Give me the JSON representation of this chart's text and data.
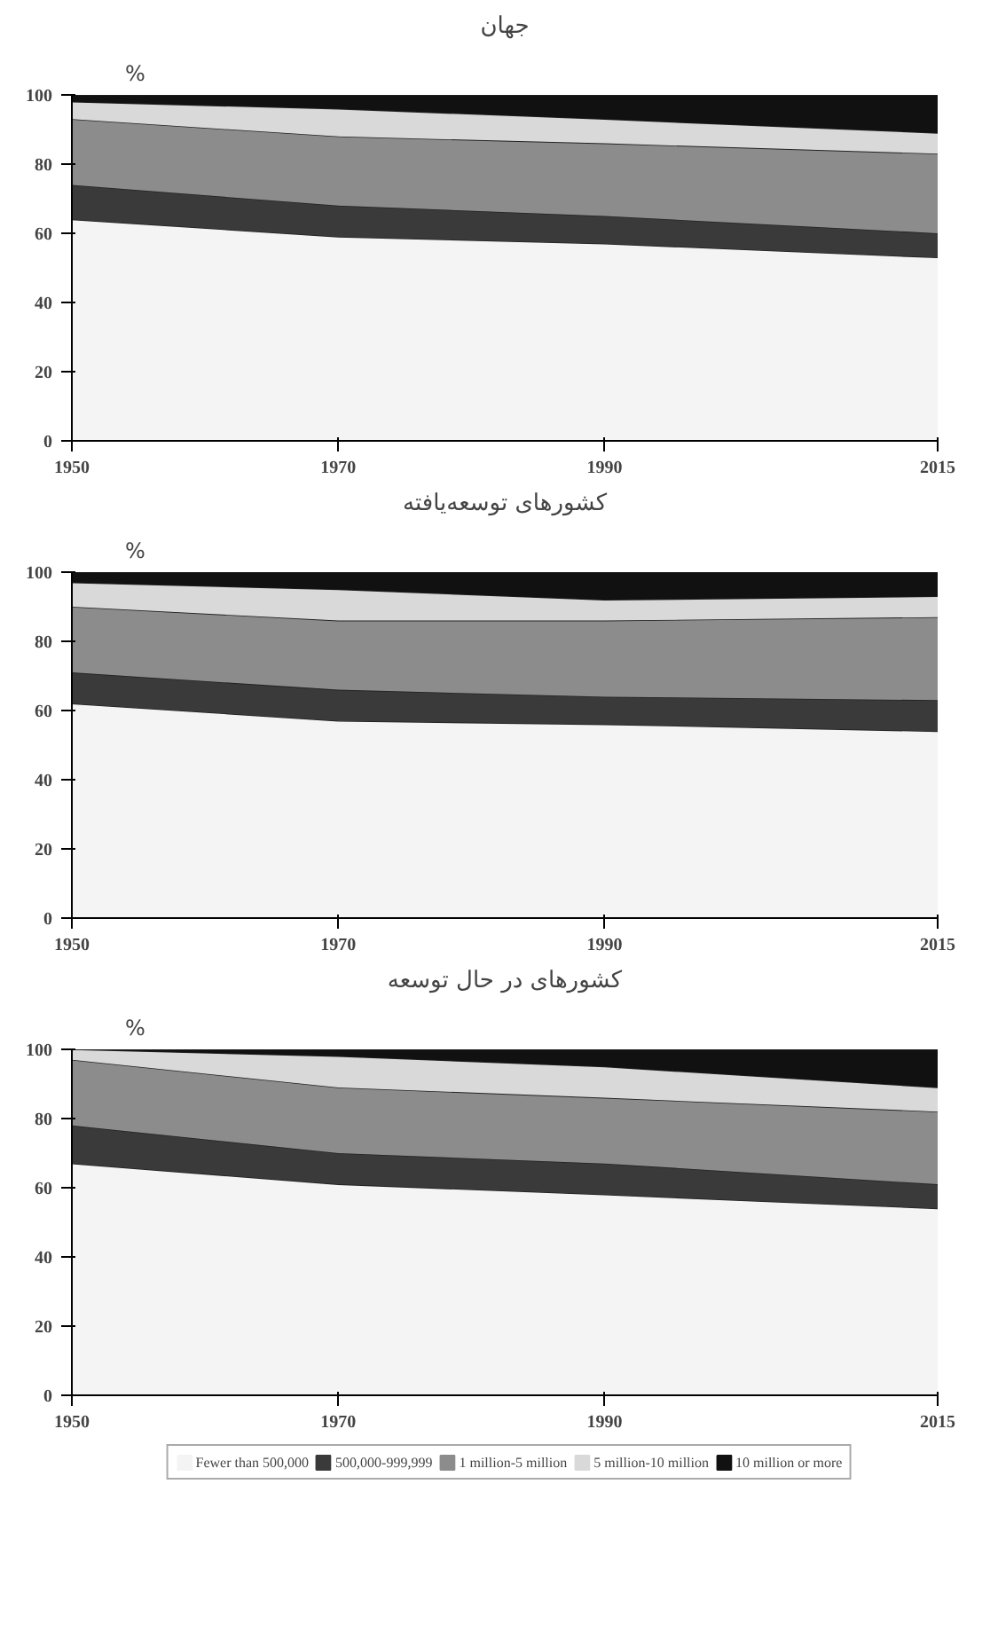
{
  "chart_data": [
    {
      "type": "area",
      "stacked": true,
      "title": "جهان",
      "ylabel": "%",
      "x": [
        1950,
        1970,
        1990,
        2015
      ],
      "xlim": [
        1950,
        2015
      ],
      "xticks": [
        1950,
        1970,
        1990,
        2015
      ],
      "ylim": [
        0,
        100
      ],
      "yticks": [
        0,
        20,
        40,
        60,
        80,
        100
      ],
      "legend": false,
      "series": [
        {
          "color": "#f4f4f4",
          "values": [
            64,
            59,
            57,
            53
          ]
        },
        {
          "color": "#3a3a3a",
          "values": [
            10,
            9,
            8,
            7
          ]
        },
        {
          "color": "#8c8c8c",
          "values": [
            19,
            20,
            21,
            23
          ]
        },
        {
          "color": "#d9d9d9",
          "values": [
            5,
            8,
            7,
            6
          ]
        },
        {
          "color": "#111111",
          "values": [
            2,
            4,
            7,
            11
          ]
        }
      ]
    },
    {
      "type": "area",
      "stacked": true,
      "title": "کشورهای توسعه‌یافته",
      "ylabel": "%",
      "x": [
        1950,
        1970,
        1990,
        2015
      ],
      "xlim": [
        1950,
        2015
      ],
      "xticks": [
        1950,
        1970,
        1990,
        2015
      ],
      "ylim": [
        0,
        100
      ],
      "yticks": [
        0,
        20,
        40,
        60,
        80,
        100
      ],
      "legend": false,
      "series": [
        {
          "color": "#f4f4f4",
          "values": [
            62,
            57,
            56,
            54
          ]
        },
        {
          "color": "#3a3a3a",
          "values": [
            9,
            9,
            8,
            9
          ]
        },
        {
          "color": "#8c8c8c",
          "values": [
            19,
            20,
            22,
            24
          ]
        },
        {
          "color": "#d9d9d9",
          "values": [
            7,
            9,
            6,
            6
          ]
        },
        {
          "color": "#111111",
          "values": [
            3,
            5,
            8,
            7
          ]
        }
      ]
    },
    {
      "type": "area",
      "stacked": true,
      "title": "کشورهای در حال توسعه",
      "ylabel": "%",
      "x": [
        1950,
        1970,
        1990,
        2015
      ],
      "xlim": [
        1950,
        2015
      ],
      "xticks": [
        1950,
        1970,
        1990,
        2015
      ],
      "ylim": [
        0,
        100
      ],
      "yticks": [
        0,
        20,
        40,
        60,
        80,
        100
      ],
      "legend": "bottom",
      "series": [
        {
          "name": "Fewer than 500,000",
          "color": "#f4f4f4",
          "values": [
            67,
            61,
            58,
            54
          ]
        },
        {
          "name": "500,000-999,999",
          "color": "#3a3a3a",
          "values": [
            11,
            9,
            9,
            7
          ]
        },
        {
          "name": "1 million-5 million",
          "color": "#8c8c8c",
          "values": [
            19,
            19,
            19,
            21
          ]
        },
        {
          "name": "5 million-10 million",
          "color": "#d9d9d9",
          "values": [
            3,
            9,
            9,
            7
          ]
        },
        {
          "name": "10 million or more",
          "color": "#111111",
          "values": [
            0,
            2,
            5,
            11
          ]
        }
      ]
    }
  ]
}
